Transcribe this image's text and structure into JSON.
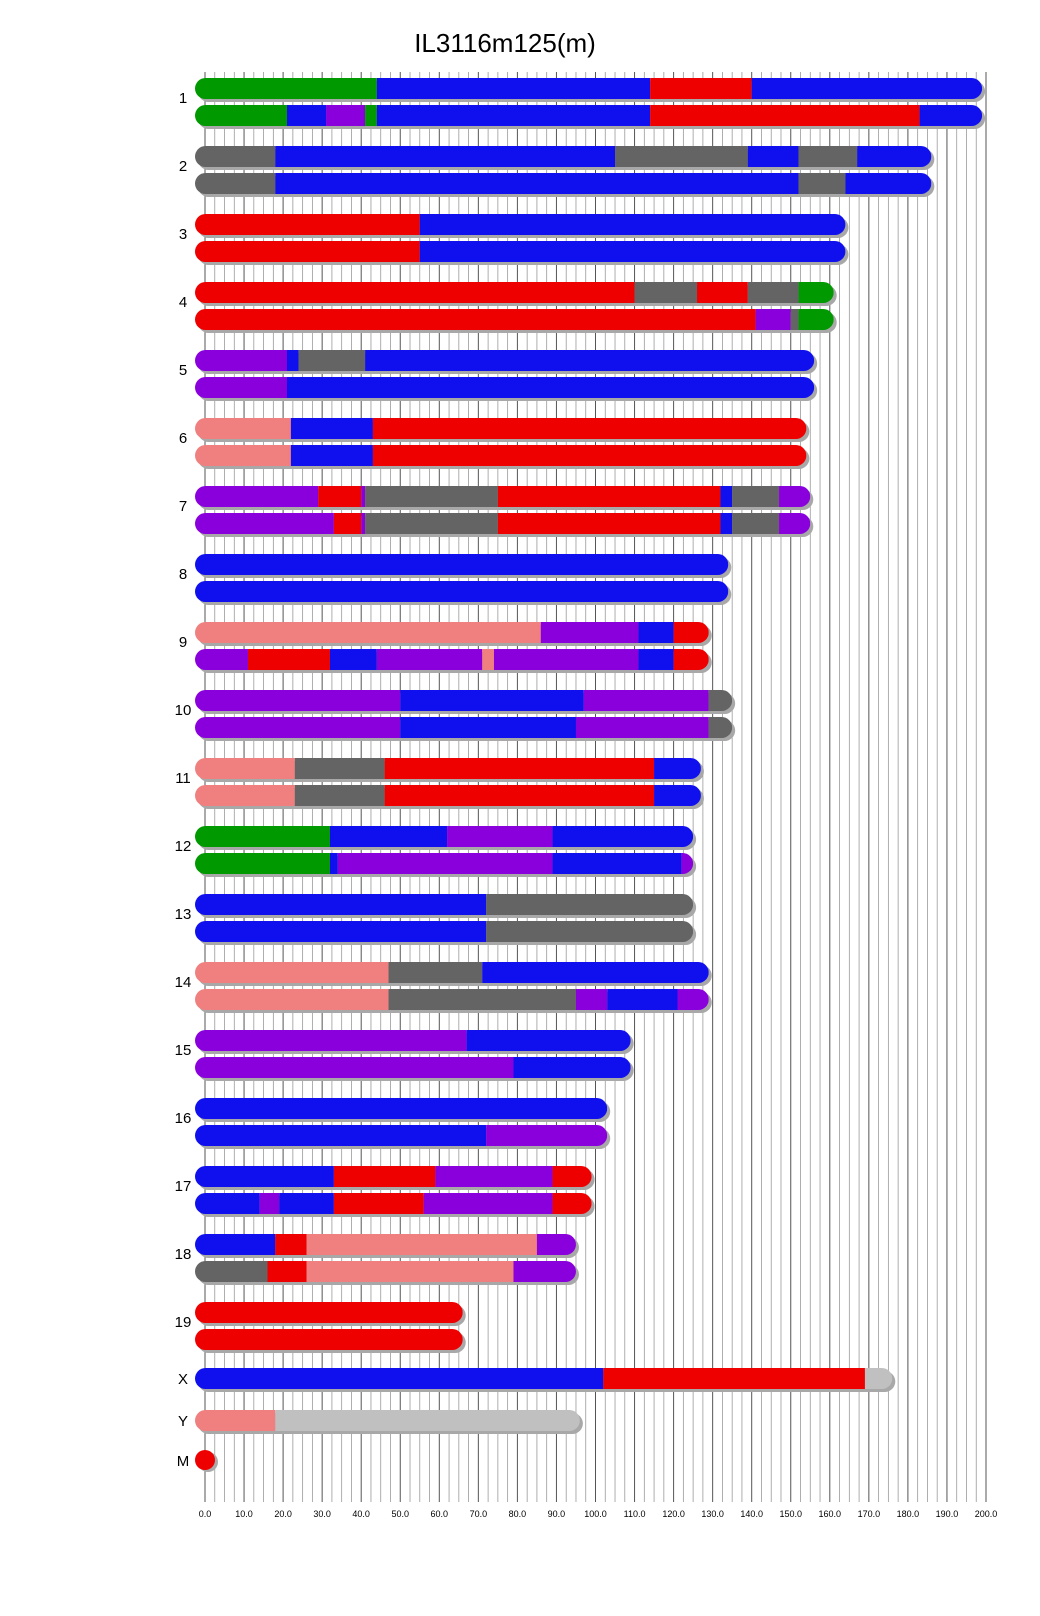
{
  "colors": {
    "green": "#009900",
    "blue": "#1010ee",
    "red": "#ee0000",
    "gray": "#646464",
    "purple": "#8a00dd",
    "pink": "#f08080",
    "lightgray": "#c0c0c0"
  },
  "chart_data": {
    "type": "bar",
    "title": "IL3116m125(m)",
    "xlabel": "",
    "ylabel": "",
    "xlim": [
      0,
      200
    ],
    "tick_step": 10,
    "tick_labels": [
      "0.0",
      "10.0",
      "20.0",
      "30.0",
      "40.0",
      "50.0",
      "60.0",
      "70.0",
      "80.0",
      "90.0",
      "100.0",
      "110.0",
      "120.0",
      "130.0",
      "140.0",
      "150.0",
      "160.0",
      "170.0",
      "180.0",
      "190.0",
      "200.0"
    ],
    "chromosomes": [
      {
        "label": "1",
        "haplotypes": [
          [
            [
              0,
              44,
              "green"
            ],
            [
              44,
              114,
              "blue"
            ],
            [
              114,
              140,
              "red"
            ],
            [
              140,
              199,
              "blue"
            ]
          ],
          [
            [
              0,
              21,
              "green"
            ],
            [
              21,
              31,
              "blue"
            ],
            [
              31,
              41,
              "purple"
            ],
            [
              41,
              44,
              "green"
            ],
            [
              44,
              114,
              "blue"
            ],
            [
              114,
              183,
              "red"
            ],
            [
              183,
              199,
              "blue"
            ]
          ]
        ]
      },
      {
        "label": "2",
        "haplotypes": [
          [
            [
              0,
              18,
              "gray"
            ],
            [
              18,
              105,
              "blue"
            ],
            [
              105,
              139,
              "gray"
            ],
            [
              139,
              152,
              "blue"
            ],
            [
              152,
              167,
              "gray"
            ],
            [
              167,
              186,
              "blue"
            ]
          ],
          [
            [
              0,
              18,
              "gray"
            ],
            [
              18,
              152,
              "blue"
            ],
            [
              152,
              164,
              "gray"
            ],
            [
              164,
              186,
              "blue"
            ]
          ]
        ]
      },
      {
        "label": "3",
        "haplotypes": [
          [
            [
              0,
              55,
              "red"
            ],
            [
              55,
              164,
              "blue"
            ]
          ],
          [
            [
              0,
              55,
              "red"
            ],
            [
              55,
              164,
              "blue"
            ]
          ]
        ]
      },
      {
        "label": "4",
        "haplotypes": [
          [
            [
              0,
              110,
              "red"
            ],
            [
              110,
              126,
              "gray"
            ],
            [
              126,
              139,
              "red"
            ],
            [
              139,
              152,
              "gray"
            ],
            [
              152,
              161,
              "green"
            ]
          ],
          [
            [
              0,
              141,
              "red"
            ],
            [
              141,
              150,
              "purple"
            ],
            [
              150,
              152,
              "gray"
            ],
            [
              152,
              161,
              "green"
            ]
          ]
        ]
      },
      {
        "label": "5",
        "haplotypes": [
          [
            [
              0,
              21,
              "purple"
            ],
            [
              21,
              24,
              "blue"
            ],
            [
              24,
              41,
              "gray"
            ],
            [
              41,
              156,
              "blue"
            ]
          ],
          [
            [
              0,
              21,
              "purple"
            ],
            [
              21,
              156,
              "blue"
            ]
          ]
        ]
      },
      {
        "label": "6",
        "haplotypes": [
          [
            [
              0,
              22,
              "pink"
            ],
            [
              22,
              43,
              "blue"
            ],
            [
              43,
              154,
              "red"
            ]
          ],
          [
            [
              0,
              22,
              "pink"
            ],
            [
              22,
              43,
              "blue"
            ],
            [
              43,
              154,
              "red"
            ]
          ]
        ]
      },
      {
        "label": "7",
        "haplotypes": [
          [
            [
              0,
              29,
              "purple"
            ],
            [
              29,
              40,
              "red"
            ],
            [
              40,
              41,
              "purple"
            ],
            [
              41,
              75,
              "gray"
            ],
            [
              75,
              132,
              "red"
            ],
            [
              132,
              135,
              "blue"
            ],
            [
              135,
              147,
              "gray"
            ],
            [
              147,
              155,
              "purple"
            ]
          ],
          [
            [
              0,
              33,
              "purple"
            ],
            [
              33,
              40,
              "red"
            ],
            [
              40,
              41,
              "purple"
            ],
            [
              41,
              75,
              "gray"
            ],
            [
              75,
              132,
              "red"
            ],
            [
              132,
              135,
              "blue"
            ],
            [
              135,
              147,
              "gray"
            ],
            [
              147,
              155,
              "purple"
            ]
          ]
        ]
      },
      {
        "label": "8",
        "haplotypes": [
          [
            [
              0,
              134,
              "blue"
            ]
          ],
          [
            [
              0,
              134,
              "blue"
            ]
          ]
        ]
      },
      {
        "label": "9",
        "haplotypes": [
          [
            [
              0,
              86,
              "pink"
            ],
            [
              86,
              111,
              "purple"
            ],
            [
              111,
              120,
              "blue"
            ],
            [
              120,
              129,
              "red"
            ]
          ],
          [
            [
              0,
              11,
              "purple"
            ],
            [
              11,
              32,
              "red"
            ],
            [
              32,
              44,
              "blue"
            ],
            [
              44,
              71,
              "purple"
            ],
            [
              71,
              74,
              "pink"
            ],
            [
              74,
              111,
              "purple"
            ],
            [
              111,
              120,
              "blue"
            ],
            [
              120,
              129,
              "red"
            ]
          ]
        ]
      },
      {
        "label": "10",
        "haplotypes": [
          [
            [
              0,
              50,
              "purple"
            ],
            [
              50,
              97,
              "blue"
            ],
            [
              97,
              129,
              "purple"
            ],
            [
              129,
              135,
              "gray"
            ]
          ],
          [
            [
              0,
              50,
              "purple"
            ],
            [
              50,
              95,
              "blue"
            ],
            [
              95,
              129,
              "purple"
            ],
            [
              129,
              135,
              "gray"
            ]
          ]
        ]
      },
      {
        "label": "11",
        "haplotypes": [
          [
            [
              0,
              23,
              "pink"
            ],
            [
              23,
              46,
              "gray"
            ],
            [
              46,
              115,
              "red"
            ],
            [
              115,
              127,
              "blue"
            ]
          ],
          [
            [
              0,
              23,
              "pink"
            ],
            [
              23,
              46,
              "gray"
            ],
            [
              46,
              115,
              "red"
            ],
            [
              115,
              127,
              "blue"
            ]
          ]
        ]
      },
      {
        "label": "12",
        "haplotypes": [
          [
            [
              0,
              32,
              "green"
            ],
            [
              32,
              62,
              "blue"
            ],
            [
              62,
              89,
              "purple"
            ],
            [
              89,
              125,
              "blue"
            ]
          ],
          [
            [
              0,
              32,
              "green"
            ],
            [
              32,
              34,
              "blue"
            ],
            [
              34,
              89,
              "purple"
            ],
            [
              89,
              122,
              "blue"
            ],
            [
              122,
              125,
              "purple"
            ]
          ]
        ]
      },
      {
        "label": "13",
        "haplotypes": [
          [
            [
              0,
              72,
              "blue"
            ],
            [
              72,
              125,
              "gray"
            ]
          ],
          [
            [
              0,
              72,
              "blue"
            ],
            [
              72,
              125,
              "gray"
            ]
          ]
        ]
      },
      {
        "label": "14",
        "haplotypes": [
          [
            [
              0,
              47,
              "pink"
            ],
            [
              47,
              71,
              "gray"
            ],
            [
              71,
              129,
              "blue"
            ]
          ],
          [
            [
              0,
              47,
              "pink"
            ],
            [
              47,
              95,
              "gray"
            ],
            [
              95,
              103,
              "purple"
            ],
            [
              103,
              121,
              "blue"
            ],
            [
              121,
              129,
              "purple"
            ]
          ]
        ]
      },
      {
        "label": "15",
        "haplotypes": [
          [
            [
              0,
              67,
              "purple"
            ],
            [
              67,
              109,
              "blue"
            ]
          ],
          [
            [
              0,
              79,
              "purple"
            ],
            [
              79,
              109,
              "blue"
            ]
          ]
        ]
      },
      {
        "label": "16",
        "haplotypes": [
          [
            [
              0,
              103,
              "blue"
            ]
          ],
          [
            [
              0,
              72,
              "blue"
            ],
            [
              72,
              103,
              "purple"
            ]
          ]
        ]
      },
      {
        "label": "17",
        "haplotypes": [
          [
            [
              0,
              33,
              "blue"
            ],
            [
              33,
              59,
              "red"
            ],
            [
              59,
              89,
              "purple"
            ],
            [
              89,
              99,
              "red"
            ]
          ],
          [
            [
              0,
              14,
              "blue"
            ],
            [
              14,
              19,
              "purple"
            ],
            [
              19,
              33,
              "blue"
            ],
            [
              33,
              56,
              "red"
            ],
            [
              56,
              89,
              "purple"
            ],
            [
              89,
              99,
              "red"
            ]
          ]
        ]
      },
      {
        "label": "18",
        "haplotypes": [
          [
            [
              0,
              18,
              "blue"
            ],
            [
              18,
              26,
              "red"
            ],
            [
              26,
              85,
              "pink"
            ],
            [
              85,
              95,
              "purple"
            ]
          ],
          [
            [
              0,
              16,
              "gray"
            ],
            [
              16,
              26,
              "red"
            ],
            [
              26,
              79,
              "pink"
            ],
            [
              79,
              95,
              "purple"
            ]
          ]
        ]
      },
      {
        "label": "19",
        "haplotypes": [
          [
            [
              0,
              66,
              "red"
            ]
          ],
          [
            [
              0,
              66,
              "red"
            ]
          ]
        ]
      },
      {
        "label": "X",
        "haplotypes": [
          [
            [
              0,
              102,
              "blue"
            ],
            [
              102,
              169,
              "red"
            ],
            [
              169,
              176,
              "lightgray"
            ]
          ]
        ]
      },
      {
        "label": "Y",
        "haplotypes": [
          [
            [
              0,
              18,
              "pink"
            ],
            [
              18,
              96,
              "lightgray"
            ]
          ]
        ]
      },
      {
        "label": "M",
        "haplotypes": [
          [
            [
              0,
              1,
              "red"
            ]
          ]
        ]
      }
    ]
  }
}
